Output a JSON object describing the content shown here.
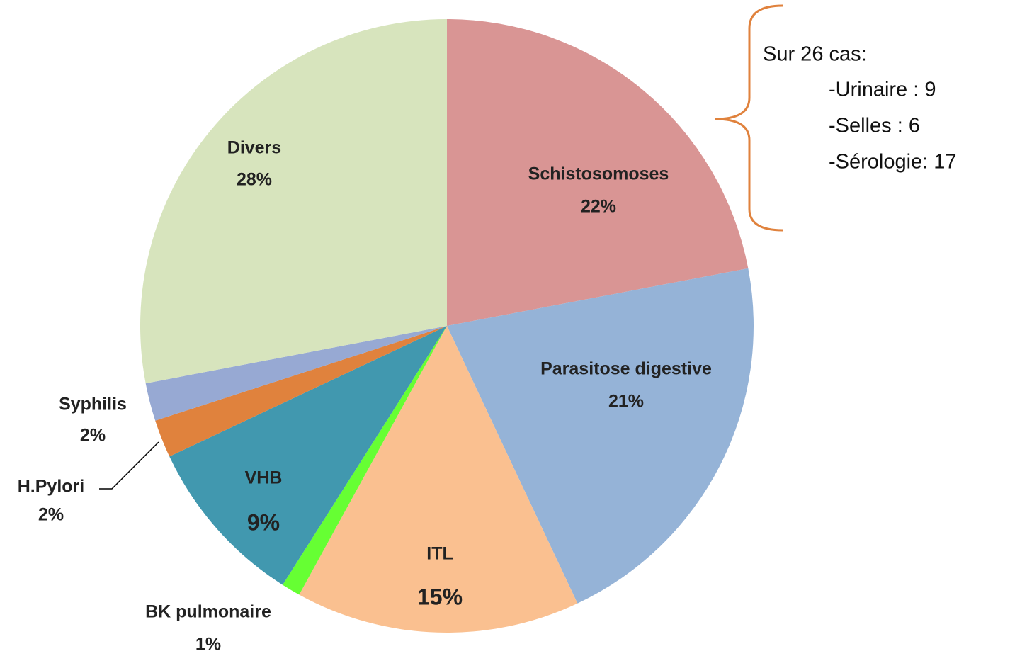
{
  "chart_data": {
    "type": "pie",
    "categories": [
      "Schistosomoses",
      "Parasitose digestive",
      "ITL",
      "BK pulmonaire",
      "VHB",
      "H.Pylori",
      "Syphilis",
      "Divers"
    ],
    "values": [
      22,
      21,
      15,
      1,
      9,
      2,
      2,
      28
    ],
    "value_labels": [
      "22%",
      "21%",
      "15%",
      "1%",
      "9%",
      "2%",
      "2%",
      "28%"
    ],
    "colors": [
      "#d99594",
      "#95b3d7",
      "#fac090",
      "#66ff33",
      "#4198af",
      "#e0823d",
      "#97a9d3",
      "#d7e4bd"
    ],
    "annotations": [
      "Sur 26 cas:",
      "-Urinaire : 9",
      "-Selles : 6",
      "-Sérologie: 17"
    ]
  }
}
